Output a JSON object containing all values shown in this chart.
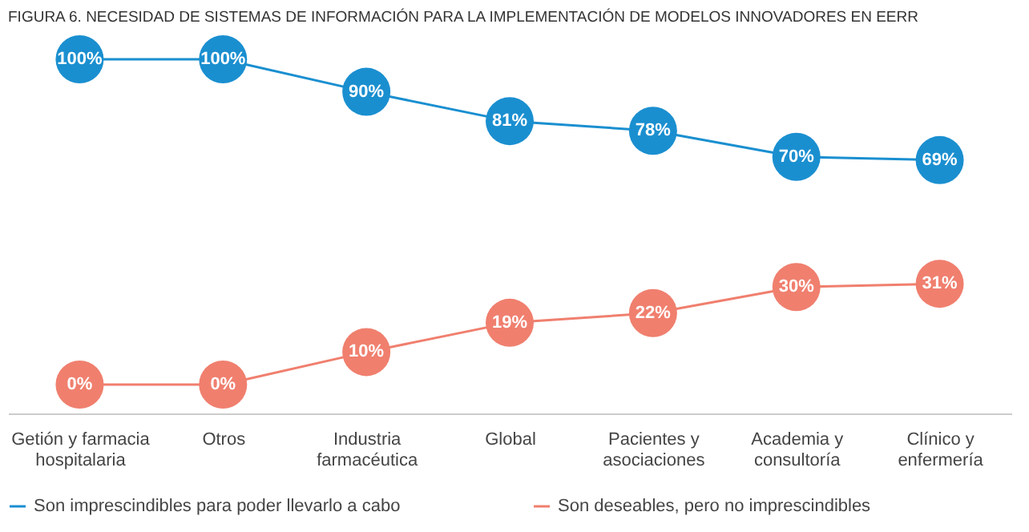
{
  "chart_data": {
    "type": "line",
    "title": "FIGURA 6. NECESIDAD DE SISTEMAS DE INFORMACIÓN PARA LA IMPLEMENTACIÓN DE MODELOS INNOVADORES EN EERR",
    "categories": [
      "Getión y farmacia hospitalaria",
      "Otros",
      "Industria farmacéutica",
      "Global",
      "Pacientes y asociaciones",
      "Academia y consultoría",
      "Clínico y enfermería"
    ],
    "series": [
      {
        "name": "Son imprescindibles para poder llevarlo a cabo",
        "color": "#1a8fd0",
        "values": [
          100,
          100,
          90,
          81,
          78,
          70,
          69
        ],
        "value_labels": [
          "100%",
          "100%",
          "90%",
          "81%",
          "78%",
          "70%",
          "69%"
        ]
      },
      {
        "name": "Son deseables, pero no imprescindibles",
        "color": "#f07f6e",
        "values": [
          0,
          0,
          10,
          19,
          22,
          30,
          31
        ],
        "value_labels": [
          "0%",
          "0%",
          "10%",
          "19%",
          "22%",
          "30%",
          "31%"
        ]
      }
    ],
    "marker": "circle",
    "line_style": "solid",
    "legend": "bottom",
    "grid": false
  }
}
